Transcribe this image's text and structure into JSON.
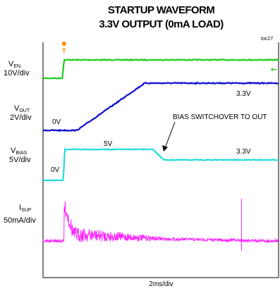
{
  "chart_data": {
    "type": "line",
    "title": "STARTUP WAVEFORM",
    "subtitle": "3.3V OUTPUT (0mA LOAD)",
    "figure_id": "toc27",
    "xlabel": "2ms/div",
    "x_unit": "ms",
    "xlim": [
      -0.65,
      6.65
    ],
    "trigger_marker": "T",
    "arrow_marker": "←",
    "series": [
      {
        "name": "EN",
        "scale": "10V/div",
        "unit": "V",
        "color": "#22cc22",
        "points": [
          [
            -0.65,
            0
          ],
          [
            -0.05,
            0
          ],
          [
            0,
            3.3
          ],
          [
            6.65,
            3.3
          ]
        ]
      },
      {
        "name": "OUT",
        "scale": "2V/div",
        "unit": "V",
        "color": "#1010d0",
        "points": [
          [
            -0.65,
            0
          ],
          [
            0.4,
            0
          ],
          [
            2.5,
            3.3
          ],
          [
            6.65,
            3.3
          ]
        ]
      },
      {
        "name": "BIAS",
        "scale": "5V/div",
        "unit": "V",
        "color": "#22dddd",
        "points": [
          [
            -0.65,
            0
          ],
          [
            -0.02,
            0
          ],
          [
            0.02,
            5
          ],
          [
            2.75,
            5
          ],
          [
            3.1,
            3.3
          ],
          [
            6.65,
            3.3
          ]
        ]
      },
      {
        "name": "SUP",
        "scale": "50mA/div",
        "unit": "mA",
        "color": "#ff22ff",
        "points": [
          [
            -0.65,
            0
          ],
          [
            0,
            0
          ],
          [
            0.05,
            48
          ],
          [
            0.3,
            10
          ],
          [
            3.1,
            3
          ],
          [
            6.65,
            0
          ]
        ]
      }
    ],
    "annotations": [
      {
        "text": "3.3V",
        "series": "OUT"
      },
      {
        "text": "0V",
        "series": "OUT"
      },
      {
        "text": "BIAS SWITCHOVER TO OUT",
        "series": "BIAS"
      },
      {
        "text": "5V",
        "series": "BIAS"
      },
      {
        "text": "3.3V",
        "series": "BIAS"
      },
      {
        "text": "0V",
        "series": "BIAS"
      }
    ]
  }
}
